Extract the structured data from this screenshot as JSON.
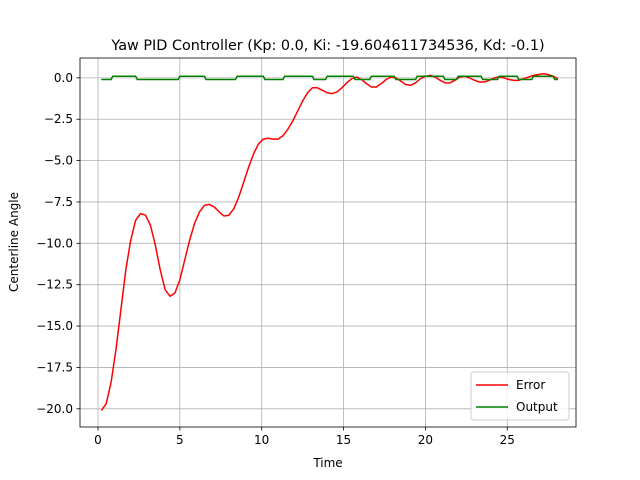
{
  "chart_data": {
    "type": "line",
    "title": "Yaw PID Controller (Kp: 0.0, Ki: -19.604611734536, Kd: -0.1)",
    "xlabel": "Time",
    "ylabel": "Centerline Angle",
    "xlim": [
      -1.1,
      29.2
    ],
    "ylim": [
      -21.1,
      1.2
    ],
    "xticks": [
      0,
      5,
      10,
      15,
      20,
      25
    ],
    "yticks": [
      0.0,
      -2.5,
      -5.0,
      -7.5,
      -10.0,
      -12.5,
      -15.0,
      -17.5,
      -20.0
    ],
    "grid": true,
    "legend_position": "lower-right",
    "colors": {
      "Error": "#ff0000",
      "Output": "#008000"
    },
    "series": [
      {
        "name": "Error",
        "x": [
          0.2,
          0.5,
          0.8,
          1.1,
          1.4,
          1.7,
          2.0,
          2.3,
          2.6,
          2.9,
          3.2,
          3.5,
          3.8,
          4.1,
          4.4,
          4.7,
          5.0,
          5.3,
          5.6,
          5.9,
          6.2,
          6.5,
          6.8,
          7.1,
          7.4,
          7.7,
          8.0,
          8.3,
          8.6,
          8.9,
          9.2,
          9.5,
          9.8,
          10.1,
          10.4,
          10.7,
          11.0,
          11.3,
          11.6,
          11.9,
          12.2,
          12.5,
          12.8,
          13.1,
          13.4,
          13.7,
          14.0,
          14.3,
          14.6,
          14.9,
          15.2,
          15.5,
          15.8,
          16.1,
          16.4,
          16.7,
          17.0,
          17.3,
          17.6,
          17.9,
          18.2,
          18.5,
          18.8,
          19.1,
          19.4,
          19.7,
          20.0,
          20.3,
          20.6,
          20.9,
          21.2,
          21.5,
          21.8,
          22.1,
          22.4,
          22.7,
          23.0,
          23.3,
          23.6,
          23.9,
          24.2,
          24.5,
          24.8,
          25.1,
          25.4,
          25.7,
          26.0,
          26.3,
          26.6,
          26.9,
          27.2,
          27.5,
          27.8,
          28.1
        ],
        "values": [
          -20.1,
          -19.7,
          -18.4,
          -16.4,
          -14.0,
          -11.6,
          -9.8,
          -8.6,
          -8.2,
          -8.3,
          -8.9,
          -10.1,
          -11.6,
          -12.8,
          -13.2,
          -13.0,
          -12.2,
          -11.0,
          -9.8,
          -8.8,
          -8.1,
          -7.7,
          -7.65,
          -7.8,
          -8.1,
          -8.35,
          -8.3,
          -7.9,
          -7.2,
          -6.3,
          -5.4,
          -4.6,
          -4.0,
          -3.7,
          -3.65,
          -3.7,
          -3.7,
          -3.5,
          -3.1,
          -2.6,
          -2.0,
          -1.4,
          -0.9,
          -0.6,
          -0.6,
          -0.75,
          -0.9,
          -0.95,
          -0.85,
          -0.6,
          -0.3,
          -0.05,
          0.05,
          -0.1,
          -0.35,
          -0.55,
          -0.55,
          -0.35,
          -0.1,
          0.05,
          0.0,
          -0.2,
          -0.4,
          -0.45,
          -0.3,
          -0.05,
          0.1,
          0.15,
          0.05,
          -0.15,
          -0.3,
          -0.3,
          -0.15,
          0.05,
          0.1,
          0.0,
          -0.15,
          -0.25,
          -0.25,
          -0.15,
          0.0,
          0.05,
          0.0,
          -0.1,
          -0.15,
          -0.15,
          -0.05,
          0.05,
          0.15,
          0.2,
          0.25,
          0.2,
          0.1,
          -0.05
        ]
      },
      {
        "name": "Output",
        "x": [
          0.2,
          0.8,
          0.9,
          2.3,
          2.4,
          4.9,
          5.0,
          6.5,
          6.6,
          8.4,
          8.5,
          10.1,
          10.2,
          11.3,
          11.4,
          13.1,
          13.2,
          13.9,
          14.0,
          15.6,
          15.7,
          16.6,
          16.7,
          18.1,
          18.2,
          19.4,
          19.5,
          21.1,
          21.2,
          21.9,
          22.0,
          23.4,
          23.5,
          24.4,
          24.5,
          25.6,
          25.7,
          26.5,
          26.6,
          27.8,
          27.9,
          28.1
        ],
        "values": [
          -0.1,
          -0.1,
          0.1,
          0.1,
          -0.1,
          -0.1,
          0.1,
          0.1,
          -0.1,
          -0.1,
          0.1,
          0.1,
          -0.1,
          -0.1,
          0.1,
          0.1,
          -0.1,
          -0.1,
          0.1,
          0.1,
          -0.1,
          -0.1,
          0.1,
          0.1,
          -0.1,
          -0.1,
          0.1,
          0.1,
          -0.1,
          -0.1,
          0.1,
          0.1,
          -0.1,
          -0.1,
          0.1,
          0.1,
          -0.1,
          -0.1,
          0.1,
          0.1,
          -0.1,
          -0.1
        ]
      }
    ]
  }
}
